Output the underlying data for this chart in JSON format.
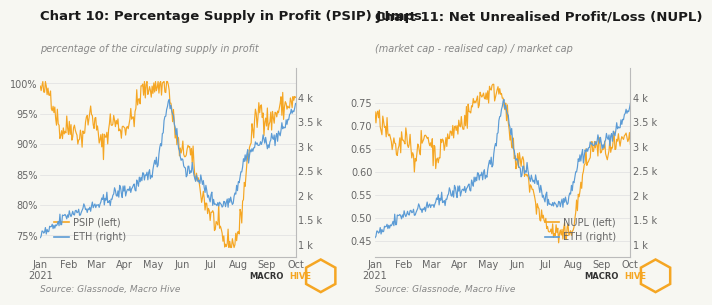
{
  "chart10": {
    "title": "Chart 10: Percentage Supply in Profit (PSIP) Jumps",
    "subtitle": "percentage of the circulating supply in profit",
    "legend": [
      "PSIP (left)",
      "ETH (right)"
    ],
    "ylim_left": [
      0.715,
      1.025
    ],
    "ylim_right": [
      750,
      4600
    ],
    "yticks_left": [
      0.75,
      0.8,
      0.85,
      0.9,
      0.95,
      1.0
    ],
    "ytick_labels_left": [
      "75%",
      "80%",
      "85%",
      "90%",
      "95%",
      "100%"
    ],
    "yticks_right": [
      1000,
      1500,
      2000,
      2500,
      3000,
      3500,
      4000
    ],
    "ytick_labels_right": [
      "1 k",
      "1.5 k",
      "2 k",
      "2.5 k",
      "3 k",
      "3.5 k",
      "4 k"
    ],
    "color_left": "#f5a623",
    "color_right": "#5b9bd5",
    "source": "Source: Glassnode, Macro Hive"
  },
  "chart11": {
    "title": "Chart 11: Net Unrealised Profit/Loss (NUPL)",
    "subtitle": "(market cap - realised cap) / market cap",
    "legend": [
      "NUPL (left)",
      "ETH (right)"
    ],
    "ylim_left": [
      0.415,
      0.825
    ],
    "ylim_right": [
      750,
      4600
    ],
    "yticks_left": [
      0.45,
      0.5,
      0.55,
      0.6,
      0.65,
      0.7,
      0.75
    ],
    "ytick_labels_left": [
      "0.45",
      "0.50",
      "0.55",
      "0.60",
      "0.65",
      "0.70",
      "0.75"
    ],
    "yticks_right": [
      1000,
      1500,
      2000,
      2500,
      3000,
      3500,
      4000
    ],
    "ytick_labels_right": [
      "1 k",
      "1.5 k",
      "2 k",
      "2.5 k",
      "3 k",
      "3.5 k",
      "4 k"
    ],
    "color_left": "#f5a623",
    "color_right": "#5b9bd5",
    "source": "Source: Glassnode, Macro Hive"
  },
  "xticklabels": [
    "Jan\n2021",
    "Feb",
    "Mar",
    "Apr",
    "May",
    "Jun",
    "Jul",
    "Aug",
    "Sep",
    "Oct"
  ],
  "background_color": "#f7f7f2",
  "grid_color": "#e0e0e0",
  "spine_color": "#bbbbbb",
  "tick_color": "#666666",
  "title_color": "#1a1a1a",
  "subtitle_color": "#888888",
  "source_color": "#888888",
  "logo_text_color": "#333333",
  "logo_hive_color": "#f5a623"
}
